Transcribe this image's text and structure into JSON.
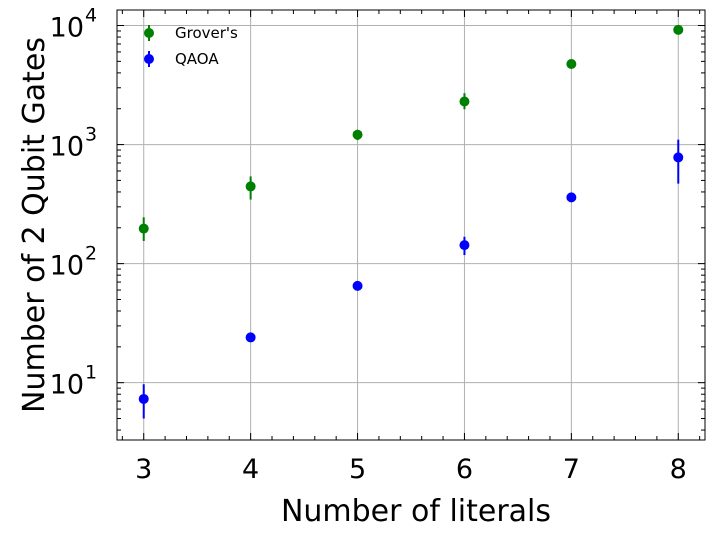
{
  "chart_data": {
    "type": "scatter",
    "title": "",
    "xlabel": "Number of literals",
    "ylabel": "Number of 2 Qubit Gates",
    "x_ticks": [
      3,
      4,
      5,
      6,
      7,
      8
    ],
    "xlim": [
      2.75,
      8.25
    ],
    "ylim": [
      3.3,
      13500
    ],
    "y_scale": "log",
    "y_tick_labels": [
      {
        "value": 10,
        "base": "10",
        "exp": "1"
      },
      {
        "value": 100,
        "base": "10",
        "exp": "2"
      },
      {
        "value": 1000,
        "base": "10",
        "exp": "3"
      },
      {
        "value": 10000,
        "base": "10",
        "exp": "4"
      }
    ],
    "grid": true,
    "legend_position": "top-left",
    "series": [
      {
        "name": "Grover's",
        "color": "#008000",
        "x": [
          3,
          4,
          5,
          6,
          7,
          8
        ],
        "y": [
          197,
          445,
          1210,
          2300,
          4750,
          9200
        ],
        "y_err_low": [
          155,
          345,
          1090,
          1980,
          4400,
          8800
        ],
        "y_err_high": [
          245,
          540,
          1330,
          2700,
          5150,
          9600
        ]
      },
      {
        "name": "QAOA",
        "color": "#0000ff",
        "x": [
          3,
          4,
          5,
          6,
          7,
          8
        ],
        "y": [
          7.3,
          24,
          65,
          143,
          360,
          780
        ],
        "y_err_low": [
          5.0,
          22.5,
          61,
          118,
          340,
          470
        ],
        "y_err_high": [
          9.7,
          25.5,
          69,
          168,
          385,
          1100
        ]
      }
    ]
  }
}
